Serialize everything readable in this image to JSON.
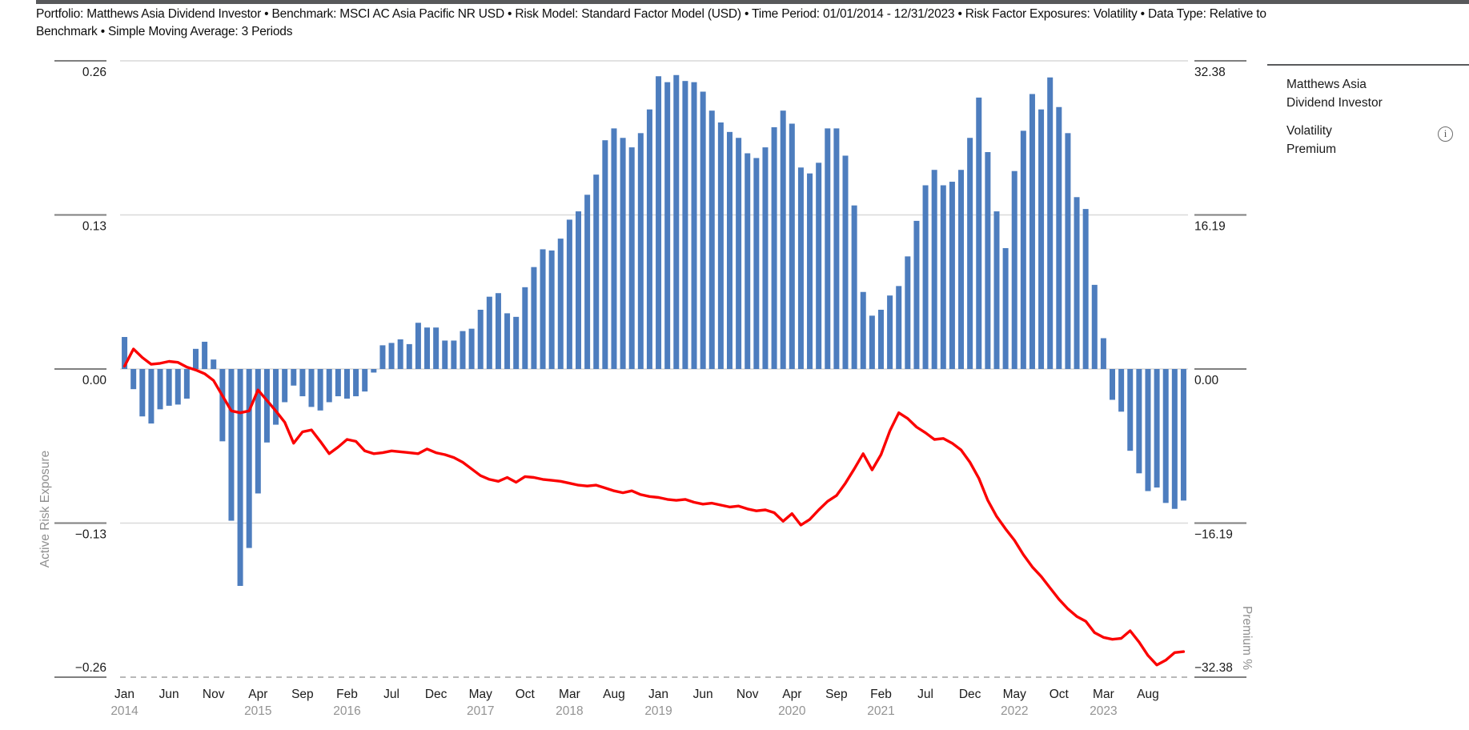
{
  "header": {
    "line1": "Portfolio: Matthews Asia Dividend Investor • Benchmark: MSCI AC Asia Pacific NR USD • Risk Model: Standard Factor Model (USD) • Time Period: 01/01/2014 - 12/31/2023 • Risk Factor Exposures: Volatility • Data Type: Relative to",
    "line2": "Benchmark • Simple Moving Average: 3 Periods"
  },
  "legend": {
    "items": [
      {
        "name": "Matthews Asia Dividend Investor",
        "line1": "Matthews Asia",
        "line2": "Dividend Investor",
        "swatch": "blue-square",
        "color": "#4d7dbe"
      },
      {
        "name": "Volatility Premium",
        "line1": "Volatility",
        "line2": "Premium",
        "swatch": "red-dash",
        "color": "#fb0000"
      }
    ],
    "info_icon": "i"
  },
  "chart_data": {
    "type": "bar+line",
    "time_range": "01/2014 - 12/2023",
    "grid": "horizontal-on",
    "colors": {
      "bar": "#4d7dbe",
      "line": "#fb0000",
      "gridline": "#d9d9d9",
      "dashed_baseline": "#a0a0a0",
      "tick_segment": "#7f7f7f"
    },
    "left_axis": {
      "label": "Active Risk Exposure",
      "range": [
        -0.26,
        0.26
      ],
      "ticks": [
        {
          "label": "0.26",
          "value": 0.26
        },
        {
          "label": "0.13",
          "value": 0.13
        },
        {
          "label": "0.00",
          "value": 0.0
        },
        {
          "label": "−0.13",
          "value": -0.13
        },
        {
          "label": "−0.26",
          "value": -0.26
        }
      ]
    },
    "right_axis": {
      "label": "Premium %",
      "range": [
        -32.38,
        32.38
      ],
      "ticks": [
        {
          "label": "32.38",
          "value": 32.38
        },
        {
          "label": "16.19",
          "value": 16.19
        },
        {
          "label": "0.00",
          "value": 0.0
        },
        {
          "label": "−16.19",
          "value": -16.19
        },
        {
          "label": "−32.38",
          "value": -32.38
        }
      ]
    },
    "x_tick_labels": [
      {
        "i": 0,
        "month": "Jan",
        "year": "2014"
      },
      {
        "i": 5,
        "month": "Jun"
      },
      {
        "i": 10,
        "month": "Nov"
      },
      {
        "i": 15,
        "month": "Apr",
        "year": "2015"
      },
      {
        "i": 20,
        "month": "Sep"
      },
      {
        "i": 25,
        "month": "Feb",
        "year": "2016"
      },
      {
        "i": 30,
        "month": "Jul"
      },
      {
        "i": 35,
        "month": "Dec"
      },
      {
        "i": 40,
        "month": "May",
        "year": "2017"
      },
      {
        "i": 45,
        "month": "Oct"
      },
      {
        "i": 50,
        "month": "Mar",
        "year": "2018"
      },
      {
        "i": 55,
        "month": "Aug"
      },
      {
        "i": 60,
        "month": "Jan",
        "year": "2019"
      },
      {
        "i": 65,
        "month": "Jun"
      },
      {
        "i": 70,
        "month": "Nov"
      },
      {
        "i": 75,
        "month": "Apr",
        "year": "2020"
      },
      {
        "i": 80,
        "month": "Sep"
      },
      {
        "i": 85,
        "month": "Feb",
        "year": "2021"
      },
      {
        "i": 90,
        "month": "Jul"
      },
      {
        "i": 95,
        "month": "Dec"
      },
      {
        "i": 100,
        "month": "May",
        "year": "2022"
      },
      {
        "i": 105,
        "month": "Oct"
      },
      {
        "i": 110,
        "month": "Mar",
        "year": "2023"
      },
      {
        "i": 115,
        "month": "Aug"
      }
    ],
    "series": [
      {
        "name": "Matthews Asia Dividend Investor",
        "type": "bar",
        "axis": "left",
        "color": "#4d7dbe",
        "values": [
          0.027,
          -0.017,
          -0.04,
          -0.046,
          -0.034,
          -0.031,
          -0.03,
          -0.025,
          0.017,
          0.023,
          0.008,
          -0.061,
          -0.128,
          -0.183,
          -0.151,
          -0.105,
          -0.062,
          -0.047,
          -0.028,
          -0.014,
          -0.023,
          -0.032,
          -0.035,
          -0.028,
          -0.023,
          -0.025,
          -0.023,
          -0.019,
          -0.003,
          0.02,
          0.022,
          0.025,
          0.021,
          0.039,
          0.035,
          0.035,
          0.024,
          0.024,
          0.032,
          0.034,
          0.05,
          0.061,
          0.064,
          0.047,
          0.044,
          0.069,
          0.086,
          0.101,
          0.1,
          0.11,
          0.126,
          0.133,
          0.147,
          0.164,
          0.193,
          0.203,
          0.195,
          0.187,
          0.199,
          0.219,
          0.247,
          0.242,
          0.248,
          0.243,
          0.242,
          0.234,
          0.218,
          0.208,
          0.2,
          0.195,
          0.182,
          0.178,
          0.187,
          0.204,
          0.218,
          0.207,
          0.17,
          0.165,
          0.174,
          0.203,
          0.203,
          0.18,
          0.138,
          0.065,
          0.045,
          0.05,
          0.062,
          0.07,
          0.095,
          0.125,
          0.155,
          0.168,
          0.155,
          0.158,
          0.168,
          0.195,
          0.229,
          0.183,
          0.133,
          0.102,
          0.167,
          0.201,
          0.232,
          0.219,
          0.246,
          0.221,
          0.199,
          0.145,
          0.135,
          0.071,
          0.026,
          -0.026,
          -0.036,
          -0.069,
          -0.088,
          -0.103,
          -0.1,
          -0.113,
          -0.118,
          -0.111
        ]
      },
      {
        "name": "Volatility Premium",
        "type": "line",
        "axis": "right",
        "color": "#fb0000",
        "values": [
          0.3,
          2.1,
          1.2,
          0.5,
          0.6,
          0.8,
          0.7,
          0.2,
          -0.1,
          -0.5,
          -1.2,
          -2.8,
          -4.4,
          -4.6,
          -4.4,
          -2.2,
          -3.3,
          -4.4,
          -5.6,
          -7.8,
          -6.6,
          -6.4,
          -7.6,
          -8.9,
          -8.2,
          -7.4,
          -7.6,
          -8.6,
          -8.9,
          -8.8,
          -8.6,
          -8.7,
          -8.8,
          -8.9,
          -8.4,
          -8.8,
          -9.0,
          -9.3,
          -9.8,
          -10.5,
          -11.2,
          -11.6,
          -11.8,
          -11.4,
          -11.9,
          -11.3,
          -11.4,
          -11.6,
          -11.7,
          -11.8,
          -12.0,
          -12.2,
          -12.3,
          -12.2,
          -12.5,
          -12.8,
          -13.0,
          -12.8,
          -13.2,
          -13.4,
          -13.5,
          -13.7,
          -13.8,
          -13.7,
          -14.0,
          -14.2,
          -14.1,
          -14.3,
          -14.5,
          -14.4,
          -14.7,
          -14.9,
          -14.8,
          -15.1,
          -16.0,
          -15.2,
          -16.4,
          -15.8,
          -14.8,
          -13.9,
          -13.3,
          -12.0,
          -10.5,
          -8.9,
          -10.6,
          -9.0,
          -6.5,
          -4.6,
          -5.2,
          -6.1,
          -6.7,
          -7.4,
          -7.3,
          -7.8,
          -8.5,
          -9.8,
          -11.5,
          -13.8,
          -15.5,
          -16.8,
          -18.0,
          -19.5,
          -20.8,
          -21.8,
          -23.0,
          -24.2,
          -25.2,
          -26.0,
          -26.5,
          -27.7,
          -28.2,
          -28.4,
          -28.3,
          -27.5,
          -28.7,
          -30.1,
          -31.1,
          -30.6,
          -29.8,
          -29.7
        ]
      }
    ]
  }
}
